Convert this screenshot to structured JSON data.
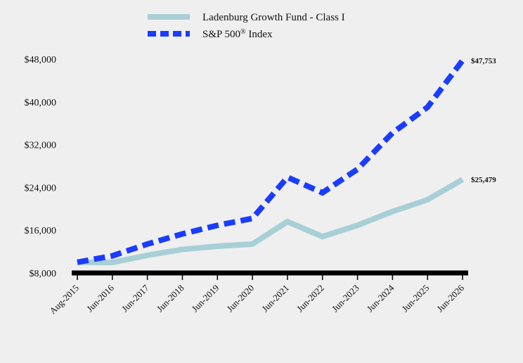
{
  "chart_data": {
    "type": "line",
    "x": [
      "Aug-2015",
      "Jun-2016",
      "Jun-2017",
      "Jun-2018",
      "Jun-2019",
      "Jun-2020",
      "Jun-2021",
      "Jun-2022",
      "Jun-2023",
      "Jun-2024",
      "Jun-2025",
      "Jun-2026"
    ],
    "series": [
      {
        "name": "Ladenburg Growth Fund - Class I",
        "color": "#a8cfd6",
        "style": "solid",
        "values": [
          10000,
          9950,
          11300,
          12400,
          13000,
          13400,
          17600,
          14800,
          16900,
          19500,
          21700,
          25479
        ],
        "end_label": "$25,479"
      },
      {
        "name": "S&P 500",
        "name_sup": "®",
        "name_suffix": " Index",
        "color": "#1a3cff",
        "style": "dashed",
        "values": [
          10000,
          11200,
          13400,
          15300,
          16900,
          18200,
          25900,
          23000,
          27400,
          34200,
          39000,
          47753
        ],
        "end_label": "$47,753"
      }
    ],
    "yticks": [
      "$8,000",
      "$16,000",
      "$24,000",
      "$32,000",
      "$40,000",
      "$48,000"
    ],
    "ytick_values": [
      8000,
      16000,
      24000,
      32000,
      40000,
      48000
    ],
    "ylim": [
      8000,
      48000
    ],
    "grid": false,
    "legend_position": "top-center"
  }
}
